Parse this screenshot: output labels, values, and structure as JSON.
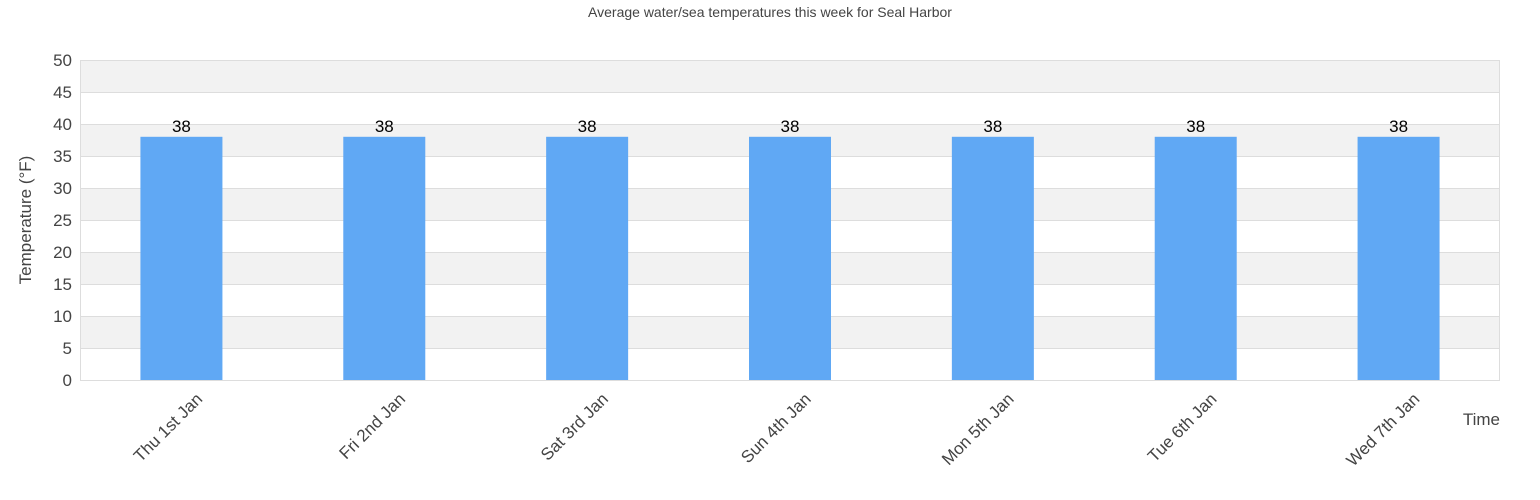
{
  "chart_data": {
    "type": "bar",
    "title": "Average water/sea temperatures this week for Seal Harbor",
    "xlabel": "Time",
    "ylabel": "Temperature (°F)",
    "categories": [
      "Thu 1st Jan",
      "Fri 2nd Jan",
      "Sat 3rd Jan",
      "Sun 4th Jan",
      "Mon 5th Jan",
      "Tue 6th Jan",
      "Wed 7th Jan"
    ],
    "values": [
      38,
      38,
      38,
      38,
      38,
      38,
      38
    ],
    "data_labels": [
      "38",
      "38",
      "38",
      "38",
      "38",
      "38",
      "38"
    ],
    "ylim": [
      0,
      50
    ],
    "yticks": [
      0,
      5,
      10,
      15,
      20,
      25,
      30,
      35,
      40,
      45,
      50
    ],
    "grid": true,
    "legend": null
  },
  "colors": {
    "bar": "#60a8f4",
    "band": "#f2f2f2",
    "grid": "#dddddd",
    "axis_text": "#444444",
    "label_text": "#000000",
    "title_text": "#444444"
  }
}
